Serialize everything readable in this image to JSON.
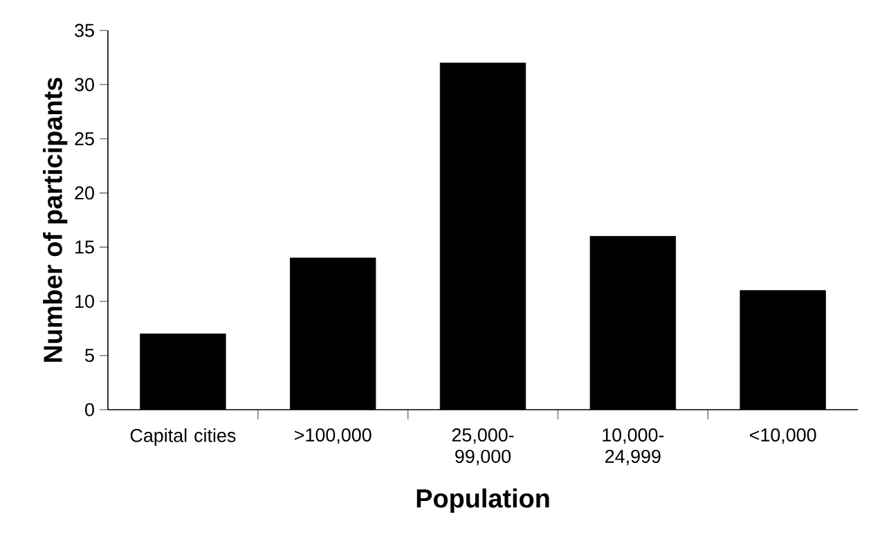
{
  "chart_data": {
    "type": "bar",
    "xlabel": "Population",
    "ylabel": "Number of participants",
    "categories": [
      "Capital cities",
      ">100,000",
      "25,000-99,000",
      "10,000-24,999",
      "<10,000"
    ],
    "values": [
      7,
      14,
      32,
      16,
      11
    ],
    "color": "#000000",
    "ylim": [
      0,
      35
    ],
    "yticks": [
      0,
      5,
      10,
      15,
      20,
      25,
      30,
      35
    ]
  }
}
